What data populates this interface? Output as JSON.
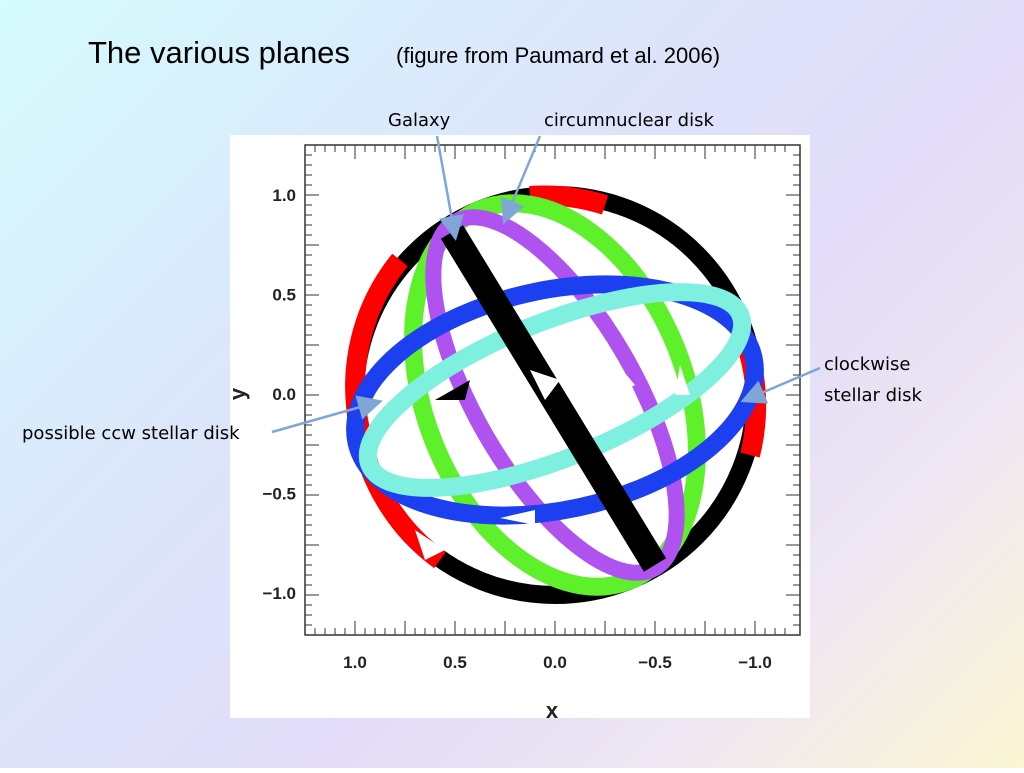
{
  "title": "The various planes",
  "subtitle": "(figure from Paumard et al. 2006)",
  "annotations": [
    "Galaxy",
    "circumnuclear disk",
    "clockwise",
    "stellar disk",
    "possible ccw stellar disk"
  ],
  "figure": {
    "x_label": "x",
    "y_label": "y",
    "x_ticks": [
      "1.0",
      "0.5",
      "0.0",
      "−0.5",
      "−1.0"
    ],
    "y_ticks": [
      "1.0",
      "0.5",
      "0.0",
      "−0.5",
      "−1.0"
    ]
  }
}
